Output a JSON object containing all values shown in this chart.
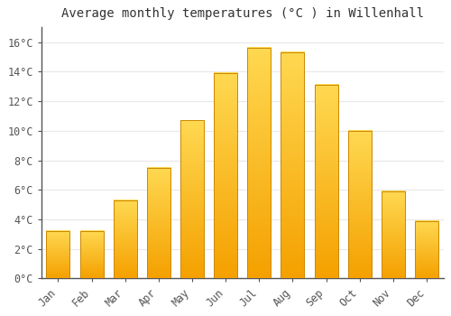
{
  "title": "Average monthly temperatures (°C ) in Willenhall",
  "months": [
    "Jan",
    "Feb",
    "Mar",
    "Apr",
    "May",
    "Jun",
    "Jul",
    "Aug",
    "Sep",
    "Oct",
    "Nov",
    "Dec"
  ],
  "values": [
    3.2,
    3.2,
    5.3,
    7.5,
    10.7,
    13.9,
    15.6,
    15.3,
    13.1,
    10.0,
    5.9,
    3.9
  ],
  "bar_color_main": "#FFBB00",
  "bar_color_bottom": "#F5A000",
  "bar_color_top": "#FFD050",
  "background_color": "#FFFFFF",
  "plot_bg_color": "#FFFFFF",
  "grid_color": "#E8E8E8",
  "ylim": [
    0,
    17
  ],
  "yticks": [
    0,
    2,
    4,
    6,
    8,
    10,
    12,
    14,
    16
  ],
  "ytick_labels": [
    "0°C",
    "2°C",
    "4°C",
    "6°C",
    "8°C",
    "10°C",
    "12°C",
    "14°C",
    "16°C"
  ],
  "title_fontsize": 10,
  "tick_fontsize": 8.5,
  "bar_width": 0.7,
  "spine_color": "#555555"
}
